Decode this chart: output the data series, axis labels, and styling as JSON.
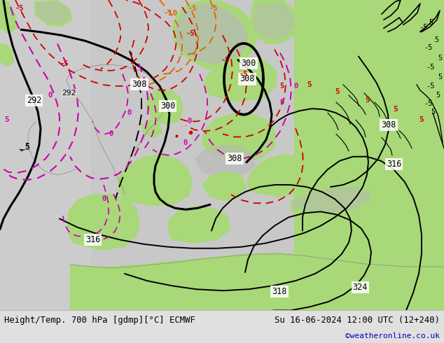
{
  "title_left": "Height/Temp. 700 hPa [gdmp][°C] ECMWF",
  "title_right": "Su 16-06-2024 12:00 UTC (12+240)",
  "watermark": "©weatheronline.co.uk",
  "bg_color": "#e0e0e0",
  "map_bg_ocean": "#d8d8d8",
  "map_bg_land": "#a8d878",
  "map_bg_highland": "#b8b8b8",
  "footer_bg": "#e8e8e8",
  "footer_text_color": "#000000",
  "watermark_color": "#0000bb",
  "fig_width": 6.34,
  "fig_height": 4.9,
  "dpi": 100,
  "black_contour_color": "#000000",
  "magenta_color": "#cc00aa",
  "red_color": "#cc0000",
  "orange_color": "#dd6600"
}
